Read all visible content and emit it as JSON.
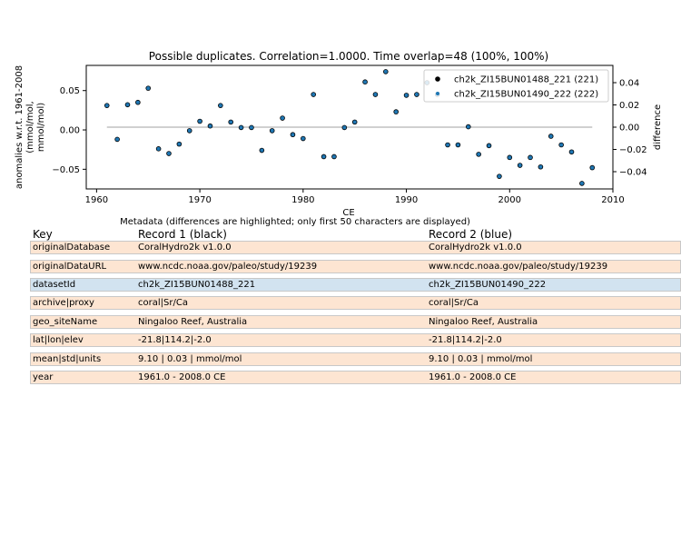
{
  "chart_data": {
    "type": "scatter",
    "title": "Possible duplicates. Correlation=1.0000. Time overlap=48 (100%, 100%)",
    "xlabel": "CE",
    "ylabel_lines": [
      "anomalies w.r.t. 1961-2008",
      "(mmol/mol,",
      "mmol/mol)"
    ],
    "y2label": "difference",
    "xlim": [
      1959,
      2010
    ],
    "ylim": [
      -0.075,
      0.082
    ],
    "y2lim": [
      -0.0555,
      0.0555
    ],
    "xticks": [
      1960,
      1970,
      1980,
      1990,
      2000,
      2010
    ],
    "yticks": [
      0.05,
      0.0,
      -0.05
    ],
    "ytick_labels": [
      "0.05",
      "0.00",
      "−0.05"
    ],
    "y2ticks": [
      0.04,
      0.02,
      0.0,
      -0.02,
      -0.04
    ],
    "y2tick_labels": [
      "0.04",
      "0.02",
      "0.00",
      "−0.02",
      "−0.04"
    ],
    "legend_position": "top-right",
    "colors": {
      "record1": "#000000",
      "record2": "#1f77b4",
      "difference": "#c0c0c0"
    },
    "series": [
      {
        "name": "ch2k_ZI15BUN01488_221 (221)",
        "x": [
          1961,
          1962,
          1963,
          1964,
          1965,
          1966,
          1967,
          1968,
          1969,
          1970,
          1971,
          1972,
          1973,
          1974,
          1975,
          1976,
          1977,
          1978,
          1979,
          1980,
          1981,
          1982,
          1983,
          1984,
          1985,
          1986,
          1987,
          1988,
          1989,
          1990,
          1991,
          1992,
          1993,
          1994,
          1995,
          1996,
          1997,
          1998,
          1999,
          2000,
          2001,
          2002,
          2003,
          2004,
          2005,
          2006,
          2007,
          2008
        ],
        "y": [
          0.031,
          -0.012,
          0.032,
          0.035,
          0.053,
          -0.024,
          -0.03,
          -0.018,
          -0.001,
          0.011,
          0.005,
          0.031,
          0.01,
          0.003,
          0.003,
          -0.026,
          -0.001,
          0.015,
          -0.006,
          -0.011,
          0.045,
          -0.034,
          -0.034,
          0.003,
          0.01,
          0.061,
          0.045,
          0.074,
          0.023,
          0.044,
          0.045,
          0.06,
          0.045,
          -0.019,
          -0.019,
          0.004,
          -0.031,
          -0.02,
          -0.059,
          -0.035,
          -0.045,
          -0.035,
          -0.047,
          -0.008,
          -0.019,
          -0.028,
          -0.068,
          -0.048
        ]
      },
      {
        "name": "ch2k_ZI15BUN01490_222 (222)",
        "x": [
          1961,
          1962,
          1963,
          1964,
          1965,
          1966,
          1967,
          1968,
          1969,
          1970,
          1971,
          1972,
          1973,
          1974,
          1975,
          1976,
          1977,
          1978,
          1979,
          1980,
          1981,
          1982,
          1983,
          1984,
          1985,
          1986,
          1987,
          1988,
          1989,
          1990,
          1991,
          1992,
          1993,
          1994,
          1995,
          1996,
          1997,
          1998,
          1999,
          2000,
          2001,
          2002,
          2003,
          2004,
          2005,
          2006,
          2007,
          2008
        ],
        "y": [
          0.031,
          -0.012,
          0.032,
          0.035,
          0.053,
          -0.024,
          -0.03,
          -0.018,
          -0.001,
          0.011,
          0.005,
          0.031,
          0.01,
          0.003,
          0.003,
          -0.026,
          -0.001,
          0.015,
          -0.006,
          -0.011,
          0.045,
          -0.034,
          -0.034,
          0.003,
          0.01,
          0.061,
          0.045,
          0.074,
          0.023,
          0.044,
          0.045,
          0.06,
          0.045,
          -0.019,
          -0.019,
          0.004,
          -0.031,
          -0.02,
          -0.059,
          -0.035,
          -0.045,
          -0.035,
          -0.047,
          -0.008,
          -0.019,
          -0.028,
          -0.068,
          -0.048
        ]
      }
    ],
    "difference": {
      "x": [
        1961,
        2008
      ],
      "y": [
        0.0,
        0.0
      ]
    }
  },
  "metadata": {
    "caption": "Metadata (differences are highlighted; only first 50 characters are displayed)",
    "headers": [
      "Key",
      "Record 1 (black)",
      "Record 2 (blue)"
    ],
    "colors": {
      "same": "#fde5d2",
      "different": "#d2e3f0"
    },
    "rows": [
      {
        "key": "originalDatabase",
        "r1": "CoralHydro2k v1.0.0",
        "r2": "CoralHydro2k v1.0.0",
        "highlight": false
      },
      {
        "key": "originalDataURL",
        "r1": "www.ncdc.noaa.gov/paleo/study/19239",
        "r2": "www.ncdc.noaa.gov/paleo/study/19239",
        "highlight": false
      },
      {
        "key": "datasetId",
        "r1": "ch2k_ZI15BUN01488_221",
        "r2": "ch2k_ZI15BUN01490_222",
        "highlight": true
      },
      {
        "key": "archive|proxy",
        "r1": "coral|Sr/Ca",
        "r2": "coral|Sr/Ca",
        "highlight": false
      },
      {
        "key": "geo_siteName",
        "r1": "Ningaloo Reef, Australia",
        "r2": "Ningaloo Reef, Australia",
        "highlight": false
      },
      {
        "key": "lat|lon|elev",
        "r1": "-21.8|114.2|-2.0",
        "r2": "-21.8|114.2|-2.0",
        "highlight": false
      },
      {
        "key": "mean|std|units",
        "r1": "9.10 | 0.03 | mmol/mol",
        "r2": "9.10 | 0.03 | mmol/mol",
        "highlight": false
      },
      {
        "key": "year",
        "r1": "1961.0 - 2008.0 CE",
        "r2": "1961.0 - 2008.0 CE",
        "highlight": false
      }
    ]
  }
}
